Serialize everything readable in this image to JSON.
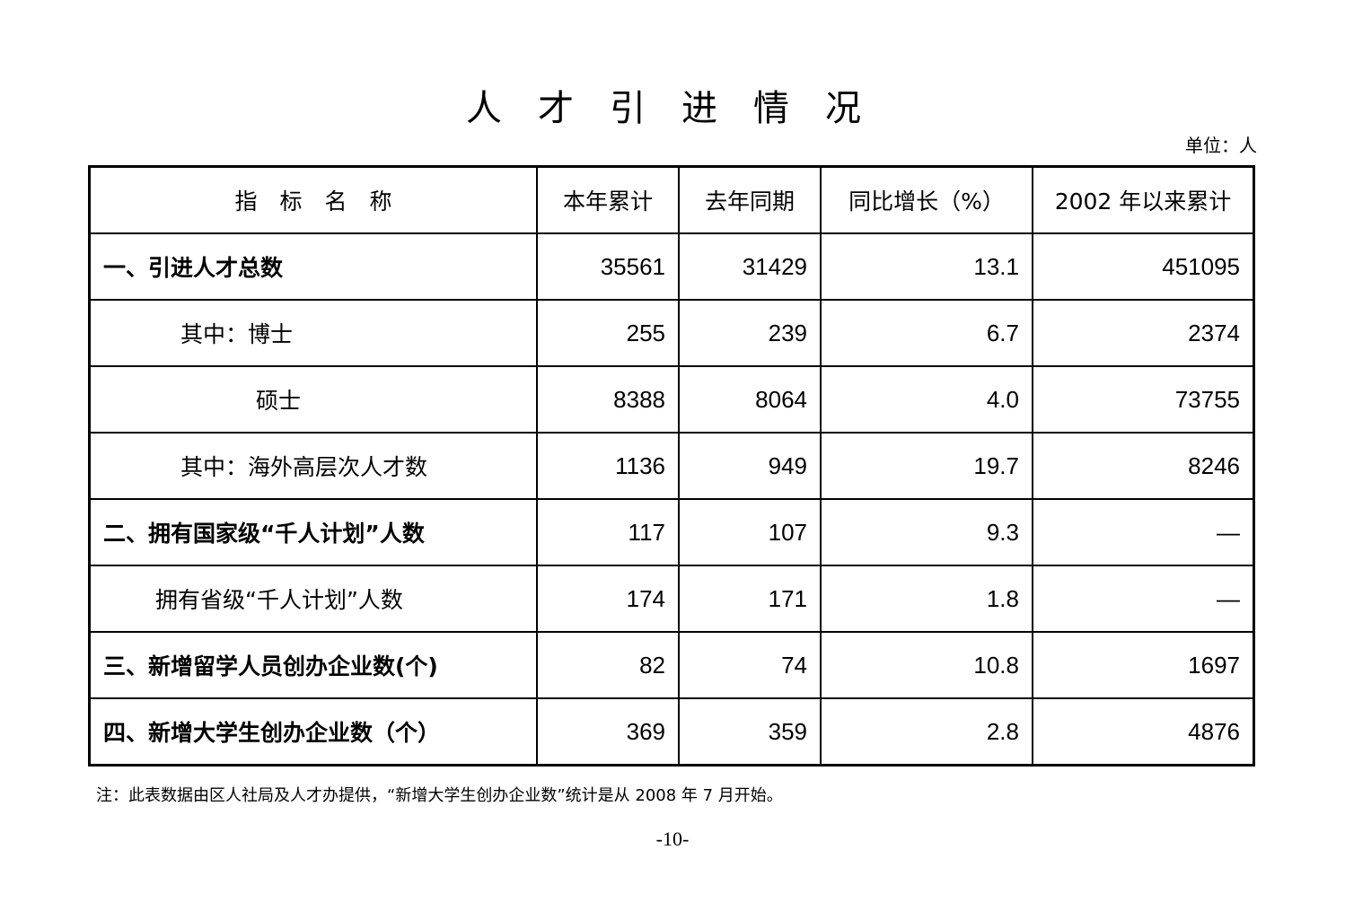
{
  "title": "人才引进情况",
  "unit": "单位：人",
  "table": {
    "headers": [
      "指　标　名　称",
      "本年累计",
      "去年同期",
      "同比增长（%）",
      "2002 年以来累计"
    ],
    "rows": [
      {
        "name": "一、引进人才总数",
        "values": [
          "35561",
          "31429",
          "13.1",
          "451095"
        ]
      },
      {
        "name": "其中：博士",
        "values": [
          "255",
          "239",
          "6.7",
          "2374"
        ]
      },
      {
        "name": "硕士",
        "values": [
          "8388",
          "8064",
          "4.0",
          "73755"
        ]
      },
      {
        "name": "其中：海外高层次人才数",
        "values": [
          "1136",
          "949",
          "19.7",
          "8246"
        ]
      },
      {
        "name": "二、拥有国家级“千人计划”人数",
        "values": [
          "117",
          "107",
          "9.3",
          "—"
        ]
      },
      {
        "name": "拥有省级“千人计划”人数",
        "values": [
          "174",
          "171",
          "1.8",
          "—"
        ]
      },
      {
        "name": "三、新增留学人员创办企业数(个)",
        "values": [
          "82",
          "74",
          "10.8",
          "1697"
        ]
      },
      {
        "name": "四、新增大学生创办企业数（个）",
        "values": [
          "369",
          "359",
          "2.8",
          "4876"
        ]
      }
    ]
  },
  "note": "注：此表数据由区人社局及人才办提供，“新增大学生创办企业数”统计是从 2008 年 7 月开始。",
  "page_number": "-10-"
}
